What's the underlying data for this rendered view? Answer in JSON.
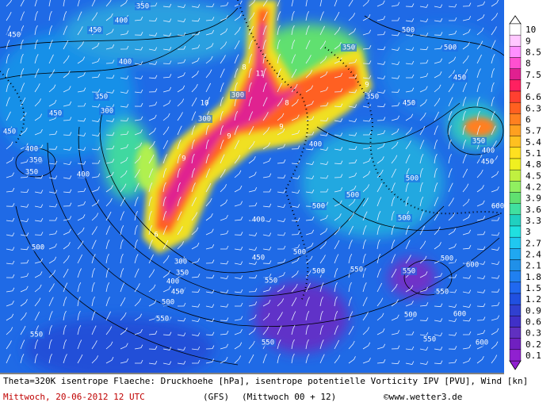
{
  "map": {
    "contour_labels": [
      350,
      450,
      400,
      450,
      400,
      350,
      300,
      350,
      300,
      350,
      300,
      350,
      450,
      500,
      500,
      450,
      400,
      350,
      450,
      450,
      400,
      350,
      400,
      450,
      500,
      400,
      300,
      350,
      400,
      450,
      500,
      550,
      550,
      400,
      450,
      500,
      500,
      550,
      550,
      500,
      500,
      550,
      600,
      500,
      550,
      600,
      500,
      550,
      550,
      600,
      500,
      500,
      600
    ],
    "pv_labels": [
      11,
      10,
      9,
      9,
      9,
      8,
      8,
      6,
      9
    ],
    "legend": {
      "levels": [
        10,
        9,
        8.5,
        8,
        7.5,
        7,
        6.6,
        6.3,
        6,
        5.7,
        5.4,
        5.1,
        4.8,
        4.5,
        4.2,
        3.9,
        3.6,
        3.3,
        3,
        2.7,
        2.4,
        2.1,
        1.8,
        1.5,
        1.2,
        0.9,
        0.6,
        0.3,
        0.2,
        0.1
      ],
      "colors": [
        "#ffffff",
        "#ffc8ff",
        "#ff90ff",
        "#ff50d0",
        "#e02090",
        "#ff2060",
        "#ff4030",
        "#ff6020",
        "#ff8020",
        "#ffa020",
        "#ffc020",
        "#ffe020",
        "#f0f020",
        "#c0f040",
        "#90f060",
        "#60e070",
        "#40e0a0",
        "#20d0c0",
        "#20e0e0",
        "#20c8f0",
        "#20a8f0",
        "#2090e8",
        "#2080f0",
        "#2068f0",
        "#2050e0",
        "#3040d0",
        "#4030c8",
        "#6030c0",
        "#7020c0",
        "#9020d0"
      ]
    }
  },
  "caption": {
    "line1": "Theta=320K isentrope Flaeche: Druckhoehe [hPa], isentrope potentielle Vorticity IPV [PVU], Wind [kn]",
    "date": "Mittwoch, 20-06-2012  12 UTC",
    "model": "(GFS)",
    "run": "(Mittwoch 00 + 12)",
    "copyright": "©www.wetter3.de"
  }
}
